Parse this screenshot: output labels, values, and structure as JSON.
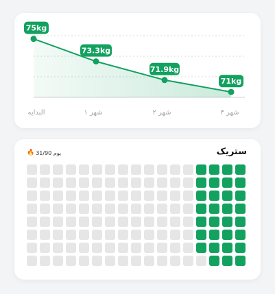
{
  "colors": {
    "accent": "#12a15f",
    "inactive": "#e6e6e6"
  },
  "weight_chart": {
    "x_labels": [
      "البدايه",
      "شهر ۱",
      "شهر ۲",
      "شهر ۳"
    ],
    "data_labels": [
      "75kg",
      "73.3kg",
      "71.9kg",
      "71kg"
    ]
  },
  "chart_data": {
    "type": "line",
    "categories": [
      "البدايه",
      "شهر ۱",
      "شهر ۲",
      "شهر ۳"
    ],
    "values": [
      75,
      73.3,
      71.9,
      71
    ],
    "unit": "kg",
    "xlabel": "",
    "ylabel": "",
    "ylim": [
      70.6,
      75.6
    ],
    "grid": true
  },
  "streak": {
    "title": "ستریک",
    "count_text": "31/90 یوم",
    "icon": "fire-icon",
    "columns": 17,
    "rows": 8,
    "total": 136,
    "completed": 31
  }
}
